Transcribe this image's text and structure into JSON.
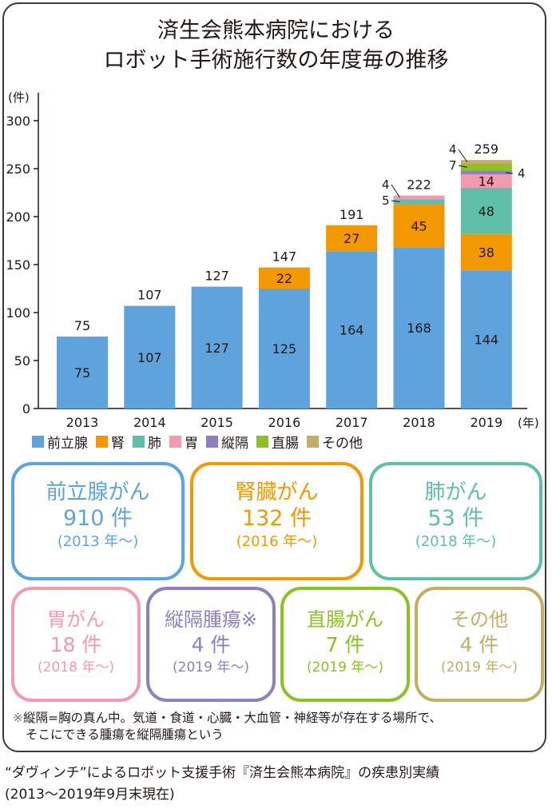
{
  "title_line1": "済生会熊本病院における",
  "title_line2": "ロボット手術施行数の年度毎の推移",
  "colors": {
    "prostate": "#5fa3dc",
    "kidney": "#f39800",
    "lung": "#5fbfa8",
    "stomach": "#f19ab0",
    "mediastinum": "#8f7fbf",
    "rectum": "#8cc21f",
    "other": "#c3ae67"
  },
  "chart_data": {
    "type": "bar",
    "stacked": true,
    "ylabel": "(件)",
    "xunit": "(年)",
    "ylim": [
      0,
      300
    ],
    "yticks": [
      "0",
      "50",
      "100",
      "150",
      "200",
      "250",
      "300"
    ],
    "categories": [
      "2013",
      "2014",
      "2015",
      "2016",
      "2017",
      "2018",
      "2019"
    ],
    "totals": [
      75,
      107,
      127,
      147,
      191,
      222,
      259
    ],
    "series": [
      {
        "name": "前立腺",
        "values": [
          75,
          107,
          127,
          125,
          164,
          168,
          144
        ]
      },
      {
        "name": "腎",
        "values": [
          0,
          0,
          0,
          22,
          27,
          45,
          38
        ]
      },
      {
        "name": "肺",
        "values": [
          0,
          0,
          0,
          0,
          0,
          5,
          48
        ]
      },
      {
        "name": "胃",
        "values": [
          0,
          0,
          0,
          0,
          0,
          4,
          14
        ]
      },
      {
        "name": "縦隔",
        "values": [
          0,
          0,
          0,
          0,
          0,
          0,
          4
        ]
      },
      {
        "name": "直腸",
        "values": [
          0,
          0,
          0,
          0,
          0,
          0,
          7
        ]
      },
      {
        "name": "その他",
        "values": [
          0,
          0,
          0,
          0,
          0,
          0,
          4
        ]
      }
    ],
    "grid": false,
    "legend": "bottom"
  },
  "cards": [
    {
      "name": "前立腺がん",
      "count": "910 件",
      "since": "(2013 年〜)"
    },
    {
      "name": "腎臓がん",
      "count": "132 件",
      "since": "(2016 年〜)"
    },
    {
      "name": "肺がん",
      "count": "53 件",
      "since": "(2018 年〜)"
    },
    {
      "name": "胃がん",
      "count": "18 件",
      "since": "(2018 年〜)"
    },
    {
      "name": "縦隔腫瘍※",
      "count": "4 件",
      "since": "(2019 年〜)"
    },
    {
      "name": "直腸がん",
      "count": "7 件",
      "since": "(2019 年〜)"
    },
    {
      "name": "その他",
      "count": "4 件",
      "since": "(2019 年〜)"
    }
  ],
  "note_mark": "※",
  "note_line1": "縦隔=胸の真ん中。気道・食道・心臓・大血管・神経等が存在する場所で、",
  "note_line2": "そこにできる腫瘍を縦隔腫瘍という",
  "footer_line1": "“ダヴィンチ”によるロボット支援手術『済生会熊本病院』の疾患別実績",
  "footer_line2": "(2013〜2019年9月末現在)"
}
